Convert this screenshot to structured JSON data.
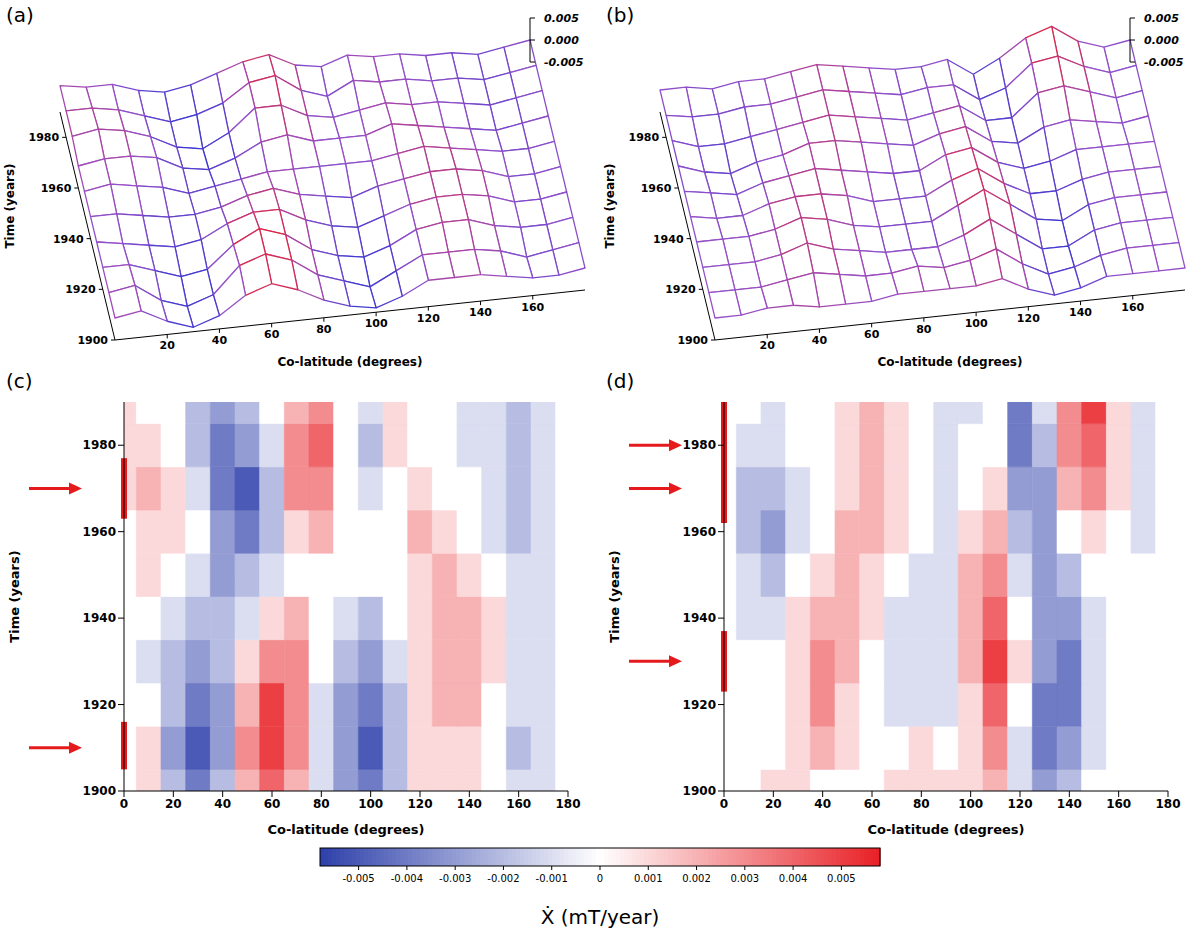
{
  "chart_data": [
    {
      "type": "surface",
      "panel": "(a)",
      "xlabel": "Co-latitude (degrees)",
      "ylabel": "Time (years)",
      "xlim": [
        0,
        180
      ],
      "xticks": [
        20,
        40,
        60,
        80,
        100,
        120,
        140,
        160
      ],
      "ylim": [
        1900,
        1990
      ],
      "yticks": [
        1900,
        1920,
        1940,
        1960,
        1980
      ],
      "zlim": [
        -0.005,
        0.005
      ],
      "zticks": [
        -0.005,
        {
          "value": 0,
          "label": "0.000"
        },
        0.005
      ],
      "x": [
        0,
        10,
        20,
        30,
        40,
        50,
        60,
        70,
        80,
        90,
        100,
        110,
        120,
        130,
        140,
        150,
        160,
        170,
        180
      ],
      "y": [
        1900,
        1910,
        1920,
        1930,
        1940,
        1950,
        1960,
        1970,
        1980,
        1990
      ],
      "cells": [
        [
          0,
          0.001,
          -0.002,
          -0.004,
          -0.002,
          0.002,
          0.004,
          0.002,
          -0.001,
          -0.003,
          -0.004,
          -0.002,
          0.001,
          0.001,
          0.001,
          0,
          -0.001,
          -0.001,
          0
        ],
        [
          0,
          0.001,
          -0.003,
          -0.005,
          -0.003,
          0.003,
          0.005,
          0.003,
          -0.001,
          -0.003,
          -0.005,
          -0.002,
          0.001,
          0.001,
          0.001,
          0,
          -0.002,
          -0.001,
          0
        ],
        [
          0,
          0,
          -0.002,
          -0.004,
          -0.003,
          0.002,
          0.005,
          0.003,
          -0.001,
          -0.003,
          -0.004,
          -0.002,
          0.001,
          0.002,
          0.002,
          0,
          -0.001,
          -0.001,
          0
        ],
        [
          0,
          -0.001,
          -0.002,
          -0.003,
          -0.002,
          0.001,
          0.003,
          0.003,
          0,
          -0.002,
          -0.003,
          -0.001,
          0.001,
          0.002,
          0.002,
          0.001,
          -0.001,
          -0.001,
          0
        ],
        [
          0,
          0,
          -0.001,
          -0.002,
          -0.002,
          -0.001,
          0.001,
          0.002,
          0,
          -0.001,
          -0.002,
          0,
          0.001,
          0.002,
          0.002,
          0.001,
          -0.001,
          -0.001,
          0
        ],
        [
          0,
          0.001,
          0,
          -0.001,
          -0.003,
          -0.002,
          -0.001,
          0,
          0,
          0,
          0,
          0,
          0.001,
          0.002,
          0.001,
          0,
          -0.001,
          -0.001,
          0
        ],
        [
          0,
          0.001,
          0.001,
          0,
          -0.003,
          -0.004,
          -0.002,
          0.001,
          0.002,
          0,
          0,
          0,
          0.002,
          0.001,
          0,
          -0.001,
          -0.002,
          -0.001,
          0
        ],
        [
          0.001,
          0.002,
          0.001,
          -0.001,
          -0.004,
          -0.005,
          -0.002,
          0.003,
          0.003,
          0,
          -0.001,
          0,
          0.001,
          0,
          0,
          -0.001,
          -0.002,
          -0.001,
          0
        ],
        [
          0.001,
          0.001,
          0,
          -0.002,
          -0.004,
          -0.003,
          -0.001,
          0.003,
          0.004,
          0,
          -0.002,
          0.001,
          0,
          0,
          -0.001,
          -0.001,
          -0.002,
          -0.001,
          0
        ],
        [
          0.001,
          0,
          0,
          -0.002,
          -0.003,
          -0.002,
          0,
          0.002,
          0.003,
          0,
          -0.001,
          0.001,
          0,
          0,
          -0.001,
          -0.001,
          -0.002,
          -0.001,
          0
        ]
      ]
    },
    {
      "type": "surface",
      "panel": "(b)",
      "xlabel": "Co-latitude (degrees)",
      "ylabel": "Time (years)",
      "xlim": [
        0,
        180
      ],
      "xticks": [
        20,
        40,
        60,
        80,
        100,
        120,
        140,
        160
      ],
      "ylim": [
        1900,
        1990
      ],
      "yticks": [
        1900,
        1920,
        1940,
        1960,
        1980
      ],
      "zlim": [
        -0.005,
        0.005
      ],
      "zticks": [
        -0.005,
        {
          "value": 0,
          "label": "0.000"
        },
        0.005
      ],
      "x": [
        0,
        10,
        20,
        30,
        40,
        50,
        60,
        70,
        80,
        90,
        100,
        110,
        120,
        130,
        140,
        150,
        160,
        170,
        180
      ],
      "y": [
        1900,
        1910,
        1920,
        1930,
        1940,
        1950,
        1960,
        1970,
        1980,
        1990
      ],
      "cells": [
        [
          0,
          0,
          0.001,
          0.001,
          0,
          0,
          0,
          0.001,
          0.001,
          0.001,
          0.001,
          0.002,
          -0.001,
          -0.003,
          -0.002,
          0,
          0,
          0,
          0
        ],
        [
          0,
          0,
          0,
          0.001,
          0.002,
          0.001,
          0,
          0,
          0.001,
          0,
          0.001,
          0.003,
          -0.001,
          -0.004,
          -0.003,
          -0.001,
          0,
          0,
          0
        ],
        [
          0,
          0,
          0,
          0.001,
          0.003,
          0.001,
          0,
          -0.001,
          -0.001,
          -0.001,
          0.001,
          0.004,
          0,
          -0.004,
          -0.004,
          -0.001,
          0,
          0,
          0
        ],
        [
          0,
          0,
          0,
          0.001,
          0.003,
          0.002,
          0,
          -0.001,
          -0.001,
          -0.001,
          0.002,
          0.005,
          0.001,
          -0.003,
          -0.004,
          -0.001,
          0,
          0,
          0
        ],
        [
          0,
          -0.001,
          -0.001,
          0.001,
          0.002,
          0.002,
          0.001,
          -0.001,
          -0.001,
          -0.001,
          0.002,
          0.004,
          0,
          -0.003,
          -0.003,
          -0.001,
          0,
          0,
          0
        ],
        [
          0,
          -0.001,
          -0.002,
          0,
          0.001,
          0.002,
          0.001,
          0,
          -0.001,
          -0.001,
          0.002,
          0.003,
          -0.001,
          -0.003,
          -0.002,
          0,
          0,
          0,
          0
        ],
        [
          0,
          -0.002,
          -0.003,
          -0.001,
          0,
          0.002,
          0.002,
          0.001,
          0,
          -0.001,
          0.001,
          0.002,
          -0.002,
          -0.003,
          0,
          0.001,
          0,
          -0.001,
          0
        ],
        [
          0,
          -0.002,
          -0.002,
          -0.001,
          0,
          0.001,
          0.002,
          0.001,
          0,
          -0.001,
          0,
          0.001,
          -0.003,
          -0.003,
          0.002,
          0.003,
          0.001,
          -0.001,
          0
        ],
        [
          0,
          -0.001,
          -0.001,
          0,
          0,
          0.001,
          0.002,
          0.001,
          0,
          -0.001,
          0,
          0,
          -0.004,
          -0.002,
          0.003,
          0.004,
          0.001,
          -0.001,
          0
        ],
        [
          0,
          0,
          -0.001,
          0,
          0,
          0.001,
          0.002,
          0.001,
          0,
          -0.001,
          -0.001,
          0,
          -0.004,
          -0.001,
          0.003,
          0.005,
          0.001,
          -0.001,
          0
        ]
      ]
    },
    {
      "type": "heatmap",
      "panel": "(c)",
      "xlabel": "Co-latitude (degrees)",
      "ylabel": "Time (years)",
      "xlim": [
        0,
        180
      ],
      "xticks": [
        0,
        20,
        40,
        60,
        80,
        100,
        120,
        140,
        160,
        180
      ],
      "ylim": [
        1900,
        1990
      ],
      "yticks": [
        1900,
        1920,
        1940,
        1960,
        1980
      ],
      "periods": [
        {
          "from": 1905,
          "to": 1916,
          "arrows": [
            1910
          ]
        },
        {
          "from": 1963,
          "to": 1977,
          "arrows": [
            1970
          ]
        }
      ],
      "x": [
        0,
        10,
        20,
        30,
        40,
        50,
        60,
        70,
        80,
        90,
        100,
        110,
        120,
        130,
        140,
        150,
        160,
        170,
        180
      ],
      "y": [
        1900,
        1910,
        1920,
        1930,
        1940,
        1950,
        1960,
        1970,
        1980,
        1990
      ],
      "cells": [
        [
          0,
          0.001,
          -0.002,
          -0.004,
          -0.002,
          0.002,
          0.004,
          0.002,
          -0.001,
          -0.003,
          -0.004,
          -0.002,
          0.001,
          0.001,
          0.001,
          0,
          -0.001,
          -0.001,
          0
        ],
        [
          0,
          0.001,
          -0.003,
          -0.005,
          -0.003,
          0.003,
          0.005,
          0.003,
          -0.001,
          -0.003,
          -0.005,
          -0.002,
          0.001,
          0.001,
          0.001,
          0,
          -0.002,
          -0.001,
          0
        ],
        [
          0,
          0,
          -0.002,
          -0.004,
          -0.003,
          0.002,
          0.005,
          0.003,
          -0.001,
          -0.003,
          -0.004,
          -0.002,
          0.001,
          0.002,
          0.002,
          0,
          -0.001,
          -0.001,
          0
        ],
        [
          0,
          -0.001,
          -0.002,
          -0.003,
          -0.002,
          0.001,
          0.003,
          0.003,
          0,
          -0.002,
          -0.003,
          -0.001,
          0.001,
          0.002,
          0.002,
          0.001,
          -0.001,
          -0.001,
          0
        ],
        [
          0,
          0,
          -0.001,
          -0.002,
          -0.002,
          -0.001,
          0.001,
          0.002,
          0,
          -0.001,
          -0.002,
          0,
          0.001,
          0.002,
          0.002,
          0.001,
          -0.001,
          -0.001,
          0
        ],
        [
          0,
          0.001,
          0,
          -0.001,
          -0.003,
          -0.002,
          -0.001,
          0,
          0,
          0,
          0,
          0,
          0.001,
          0.002,
          0.001,
          0,
          -0.001,
          -0.001,
          0
        ],
        [
          0,
          0.001,
          0.001,
          0,
          -0.003,
          -0.004,
          -0.002,
          0.001,
          0.002,
          0,
          0,
          0,
          0.002,
          0.001,
          0,
          -0.001,
          -0.002,
          -0.001,
          0
        ],
        [
          0.001,
          0.002,
          0.001,
          -0.001,
          -0.004,
          -0.005,
          -0.002,
          0.003,
          0.003,
          0,
          -0.001,
          0,
          0.001,
          0,
          0,
          -0.001,
          -0.002,
          -0.001,
          0
        ],
        [
          0.001,
          0.001,
          0,
          -0.002,
          -0.004,
          -0.003,
          -0.001,
          0.003,
          0.004,
          0,
          -0.002,
          0.001,
          0,
          0,
          -0.001,
          -0.001,
          -0.002,
          -0.001,
          0
        ],
        [
          0.001,
          0,
          0,
          -0.002,
          -0.003,
          -0.002,
          0,
          0.002,
          0.003,
          0,
          -0.001,
          0.001,
          0,
          0,
          -0.001,
          -0.001,
          -0.002,
          -0.001,
          0
        ]
      ]
    },
    {
      "type": "heatmap",
      "panel": "(d)",
      "xlabel": "Co-latitude (degrees)",
      "ylabel": "Time (years)",
      "xlim": [
        0,
        180
      ],
      "xticks": [
        0,
        20,
        40,
        60,
        80,
        100,
        120,
        140,
        160,
        180
      ],
      "ylim": [
        1900,
        1990
      ],
      "yticks": [
        1900,
        1920,
        1940,
        1960,
        1980
      ],
      "periods": [
        {
          "from": 1923,
          "to": 1937,
          "arrows": [
            1930
          ]
        },
        {
          "from": 1962,
          "to": 1990,
          "arrows": [
            1970,
            1980
          ]
        }
      ],
      "x": [
        0,
        10,
        20,
        30,
        40,
        50,
        60,
        70,
        80,
        90,
        100,
        110,
        120,
        130,
        140,
        150,
        160,
        170,
        180
      ],
      "y": [
        1900,
        1910,
        1920,
        1930,
        1940,
        1950,
        1960,
        1970,
        1980,
        1990
      ],
      "cells": [
        [
          0,
          0,
          0.001,
          0.001,
          0,
          0,
          0,
          0.001,
          0.001,
          0.001,
          0.001,
          0.002,
          -0.001,
          -0.003,
          -0.002,
          0,
          0,
          0,
          0
        ],
        [
          0,
          0,
          0,
          0.001,
          0.002,
          0.001,
          0,
          0,
          0.001,
          0,
          0.001,
          0.003,
          -0.001,
          -0.004,
          -0.003,
          -0.001,
          0,
          0,
          0
        ],
        [
          0,
          0,
          0,
          0.001,
          0.003,
          0.001,
          0,
          -0.001,
          -0.001,
          -0.001,
          0.001,
          0.004,
          0,
          -0.004,
          -0.004,
          -0.001,
          0,
          0,
          0
        ],
        [
          0,
          0,
          0,
          0.001,
          0.003,
          0.002,
          0,
          -0.001,
          -0.001,
          -0.001,
          0.002,
          0.005,
          0.001,
          -0.003,
          -0.004,
          -0.001,
          0,
          0,
          0
        ],
        [
          0,
          -0.001,
          -0.001,
          0.001,
          0.002,
          0.002,
          0.001,
          -0.001,
          -0.001,
          -0.001,
          0.002,
          0.004,
          0,
          -0.003,
          -0.003,
          -0.001,
          0,
          0,
          0
        ],
        [
          0,
          -0.001,
          -0.002,
          0,
          0.001,
          0.002,
          0.001,
          0,
          -0.001,
          -0.001,
          0.002,
          0.003,
          -0.001,
          -0.003,
          -0.002,
          0,
          0,
          0,
          0
        ],
        [
          0,
          -0.002,
          -0.003,
          -0.001,
          0,
          0.002,
          0.002,
          0.001,
          0,
          -0.001,
          0.001,
          0.002,
          -0.002,
          -0.003,
          0,
          0.001,
          0,
          -0.001,
          0
        ],
        [
          0,
          -0.002,
          -0.002,
          -0.001,
          0,
          0.001,
          0.002,
          0.001,
          0,
          -0.001,
          0,
          0.001,
          -0.003,
          -0.003,
          0.002,
          0.003,
          0.001,
          -0.001,
          0
        ],
        [
          0,
          -0.001,
          -0.001,
          0,
          0,
          0.001,
          0.002,
          0.001,
          0,
          -0.001,
          0,
          0,
          -0.004,
          -0.002,
          0.003,
          0.004,
          0.001,
          -0.001,
          0
        ],
        [
          0,
          0,
          -0.001,
          0,
          0,
          0.001,
          0.002,
          0.001,
          0,
          -0.001,
          -0.001,
          0,
          -0.004,
          -0.001,
          0.003,
          0.005,
          0.001,
          -0.001,
          0
        ]
      ]
    }
  ],
  "colorbar": {
    "range": [
      -0.0058,
      0.0058
    ],
    "ticks": [
      -0.005,
      -0.004,
      -0.003,
      -0.002,
      -0.001,
      0,
      0.001,
      0.002,
      0.003,
      0.004,
      0.005
    ],
    "label": "Ẋ (mT/year)"
  }
}
